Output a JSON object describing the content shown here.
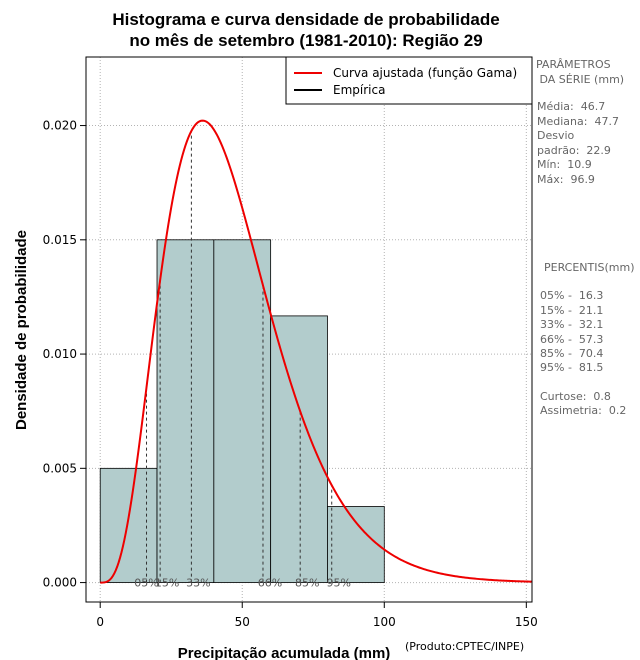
{
  "chart_data": {
    "type": "bar",
    "title": [
      "Histograma e curva densidade de probabilidade",
      "no mês de setembro (1981-2010): Região 29"
    ],
    "xlabel": "Precipitação acumulada (mm)",
    "ylabel": "Densidade de probabilidade",
    "credit": "(Produto:CPTEC/INPE)",
    "xlim": [
      -5,
      152
    ],
    "ylim": [
      -0.00085,
      0.023
    ],
    "xticks": [
      0,
      50,
      100,
      150
    ],
    "yticks": [
      0.0,
      0.005,
      0.01,
      0.015,
      0.02
    ],
    "ytick_labels": [
      "0.000",
      "0.005",
      "0.010",
      "0.015",
      "0.020"
    ],
    "grid": true,
    "bins": [
      {
        "x0": 0,
        "x1": 20,
        "density": 0.005
      },
      {
        "x0": 20,
        "x1": 40,
        "density": 0.015
      },
      {
        "x0": 40,
        "x1": 60,
        "density": 0.015
      },
      {
        "x0": 60,
        "x1": 80,
        "density": 0.01167
      },
      {
        "x0": 80,
        "x1": 100,
        "density": 0.00333
      }
    ],
    "gamma_fit": {
      "shape": 4.5,
      "scale": 10.3
    },
    "percentile_lines": [
      16.3,
      21.1,
      32.1,
      57.3,
      70.4,
      81.5
    ],
    "percentile_labels": [
      {
        "label": "05%",
        "x": 16.3
      },
      {
        "label": "15%",
        "x": 21.1
      },
      {
        "label": "33%",
        "x": 32.1
      },
      {
        "label": "66%",
        "x": 57.3
      },
      {
        "label": "85%",
        "x": 70.4
      },
      {
        "label": "95%",
        "x": 81.5
      }
    ],
    "legend": {
      "position": "top-right",
      "entries": [
        {
          "label": "Curva ajustada (função Gama)",
          "color": "#ee0000"
        },
        {
          "label": "Empírica",
          "color": "#000000"
        }
      ]
    },
    "colors": {
      "bar_fill": "#b2cccc",
      "curve": "#ee0000",
      "grid": "#b3b3b3"
    }
  },
  "side_panel": {
    "params_header": [
      "PARÂMETROS",
      " DA SÉRIE (mm)"
    ],
    "params": [
      "Média:  46.7",
      "Mediana:  47.7",
      "Desvio",
      "padrão:  22.9",
      "Mín:  10.9",
      "Máx:  96.9"
    ],
    "percentiles_header": "PERCENTIS(mm)",
    "percentiles": [
      "05% -  16.3",
      "15% -  21.1",
      "33% -  32.1",
      "66% -  57.3",
      "85% -  70.4",
      "95% -  81.5"
    ],
    "extra": [
      "Curtose:  0.8",
      "Assimetria:  0.2"
    ]
  }
}
